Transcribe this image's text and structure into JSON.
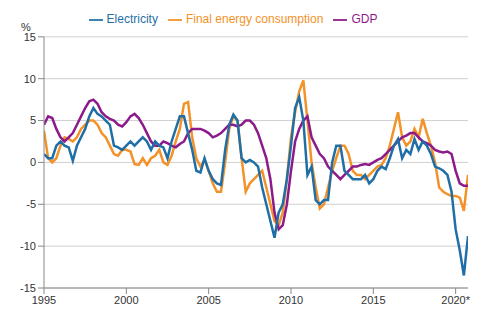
{
  "chart_data": {
    "type": "line",
    "ylabel": "%",
    "x": [
      1995,
      1995.25,
      1995.5,
      1995.75,
      1996,
      1996.25,
      1996.5,
      1996.75,
      1997,
      1997.25,
      1997.5,
      1997.75,
      1998,
      1998.25,
      1998.5,
      1998.75,
      1999,
      1999.25,
      1999.5,
      1999.75,
      2000,
      2000.25,
      2000.5,
      2000.75,
      2001,
      2001.25,
      2001.5,
      2001.75,
      2002,
      2002.25,
      2002.5,
      2002.75,
      2003,
      2003.25,
      2003.5,
      2003.75,
      2004,
      2004.25,
      2004.5,
      2004.75,
      2005,
      2005.25,
      2005.5,
      2005.75,
      2006,
      2006.25,
      2006.5,
      2006.75,
      2007,
      2007.25,
      2007.5,
      2007.75,
      2008,
      2008.25,
      2008.5,
      2008.75,
      2009,
      2009.25,
      2009.5,
      2009.75,
      2010,
      2010.25,
      2010.5,
      2010.75,
      2011,
      2011.25,
      2011.5,
      2011.75,
      2012,
      2012.25,
      2012.5,
      2012.75,
      2013,
      2013.25,
      2013.5,
      2013.75,
      2014,
      2014.25,
      2014.5,
      2014.75,
      2015,
      2015.25,
      2015.5,
      2015.75,
      2016,
      2016.25,
      2016.5,
      2016.75,
      2017,
      2017.25,
      2017.5,
      2017.75,
      2018,
      2018.25,
      2018.5,
      2018.75,
      2019,
      2019.25,
      2019.5,
      2019.75,
      2020,
      2020.25,
      2020.5,
      2020.75
    ],
    "xlim": [
      1995,
      2020.75
    ],
    "xticks": [
      1995,
      2000,
      2005,
      2010,
      2015,
      {
        "value": 2020,
        "label": "2020*"
      }
    ],
    "ylim": [
      -15,
      15
    ],
    "yticks": [
      -15,
      -10,
      -5,
      0,
      5,
      10,
      15
    ],
    "grid": true,
    "legend": "top",
    "series": [
      {
        "name": "Final energy consumption",
        "color": "#f39229",
        "values": [
          3.8,
          0.5,
          0,
          0.5,
          2,
          3,
          2.8,
          2.5,
          3,
          4,
          4.5,
          5,
          5,
          4.5,
          3.5,
          3,
          2,
          1,
          0.8,
          1.5,
          1.5,
          1.3,
          -0.2,
          -0.3,
          0.5,
          -0.3,
          0.5,
          0.8,
          1.5,
          0,
          -0.3,
          0.8,
          2.5,
          4,
          7,
          7.2,
          3,
          0.5,
          -0.5,
          0.3,
          -1,
          -2.5,
          -3.5,
          -3.5,
          0,
          4,
          5.5,
          5,
          0.5,
          -3.5,
          -2.5,
          -2,
          -1.5,
          -1,
          -3,
          -5,
          -7,
          -7.5,
          -6,
          -2,
          3,
          6,
          8.5,
          9.8,
          5,
          0,
          -3,
          -5.5,
          -5,
          -3,
          -1,
          0.5,
          2,
          2,
          1,
          -1,
          -1.5,
          -1.5,
          -2,
          -1.5,
          -1,
          -0.5,
          -0.3,
          0.5,
          2,
          4,
          6,
          3,
          2,
          2.5,
          4,
          3,
          5.2,
          3.5,
          2,
          0,
          -3,
          -3.5,
          -3.8,
          -4,
          -4,
          -4.2,
          -5.8,
          -1.5
        ]
      },
      {
        "name": "GDP",
        "color": "#8c1a8b",
        "values": [
          4.5,
          5.5,
          5.3,
          4,
          3,
          2.5,
          3,
          3.5,
          4.5,
          5.5,
          6.5,
          7.3,
          7.5,
          7,
          6,
          5.5,
          5.2,
          5,
          4.5,
          4.3,
          4.8,
          5.5,
          5.8,
          5.3,
          4.5,
          3.5,
          2.5,
          2,
          2,
          2.5,
          2.3,
          2,
          1.8,
          2.2,
          2.5,
          3.5,
          4,
          4,
          4,
          3.8,
          3.5,
          3,
          3.2,
          3.5,
          4,
          4.5,
          4.5,
          4.3,
          4.5,
          5,
          5,
          4.5,
          3.5,
          2,
          0.5,
          -2,
          -6,
          -8,
          -7.5,
          -5,
          -1,
          2.5,
          4,
          5,
          5.5,
          3,
          2,
          1,
          0.5,
          -0.5,
          -1,
          -1.5,
          -2,
          -1.5,
          -1,
          -0.5,
          -0.5,
          -0.3,
          -0.2,
          -0.3,
          0,
          0.3,
          0.5,
          1,
          1.5,
          2,
          2.5,
          3,
          3.2,
          3.5,
          3.5,
          3,
          2.5,
          2.3,
          2,
          1.5,
          1.3,
          1.2,
          1.3,
          1,
          -1,
          -2.5,
          -2.8,
          -2.8
        ]
      },
      {
        "name": "Electricity",
        "color": "#1f6fa6",
        "values": [
          1,
          0.5,
          0.5,
          2,
          2.5,
          2,
          1.8,
          0.2,
          2,
          3,
          4,
          5.5,
          6.5,
          5.8,
          5.5,
          5,
          4.5,
          2,
          1.8,
          1.5,
          2,
          2.5,
          2,
          2.5,
          3,
          2.5,
          1.5,
          2.5,
          2,
          1.8,
          0.5,
          2.5,
          4,
          5.5,
          5.5,
          3.5,
          1.5,
          -1,
          -1.2,
          0.5,
          -1,
          -2,
          -2.5,
          -2.7,
          1.5,
          4.5,
          5.7,
          5,
          0.5,
          0,
          0.3,
          0,
          -0.5,
          -3,
          -5,
          -7,
          -9,
          -6,
          -5,
          -2,
          2,
          6.5,
          7.8,
          5,
          -1.5,
          -0.5,
          -4.5,
          -5,
          -4.5,
          -4.5,
          0,
          2,
          2,
          -1,
          -1.5,
          -2,
          -2,
          -2,
          -1.5,
          -2.5,
          -2,
          -1,
          -0.5,
          -0.8,
          0.5,
          2,
          2.8,
          0.5,
          1.5,
          1,
          2.8,
          1.5,
          2.5,
          2,
          1,
          -0.5,
          -0.7,
          -1,
          -1.5,
          -3.5,
          -8,
          -10.5,
          -13.5,
          -8.8
        ]
      }
    ]
  }
}
